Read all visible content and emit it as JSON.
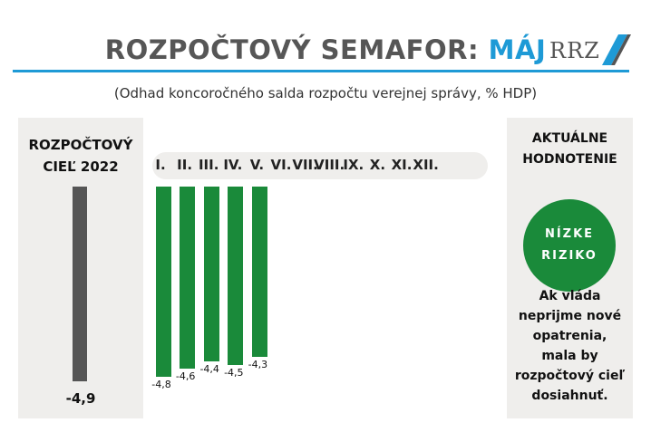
{
  "header": {
    "title_main": "ROZPOČTOVÝ SEMAFOR: ",
    "title_accent": "MÁJ",
    "logo_text": "RRZ",
    "subtitle": "(Odhad koncoročného salda rozpočtu verejnej správy, % HDP)"
  },
  "colors": {
    "accent": "#1e9ad6",
    "bar_green": "#1a8a3a",
    "target_bar": "#555555",
    "panel_bg": "#efeeec"
  },
  "target_panel": {
    "title_line1": "ROZPOČTOVÝ",
    "title_line2": "CIEĽ 2022",
    "value": -4.9,
    "value_label": "-4,9"
  },
  "assessment_panel": {
    "title_line1": "AKTUÁLNE",
    "title_line2": "HODNOTENIE",
    "risk_line1": "NÍZKE",
    "risk_line2": "RIZIKO",
    "note_lines": [
      "Ak vláda",
      "neprijme nové",
      "opatrenia,",
      "mala by",
      "rozpočtový cieľ",
      "dosiahnuť."
    ]
  },
  "chart_data": {
    "type": "bar",
    "categories": [
      "I.",
      "II.",
      "III.",
      "IV.",
      "V.",
      "VI.",
      "VII.",
      "VIII.",
      "IX.",
      "X.",
      "XI.",
      "XII."
    ],
    "values": [
      -4.8,
      -4.6,
      -4.4,
      -4.5,
      -4.3,
      null,
      null,
      null,
      null,
      null,
      null,
      null
    ],
    "value_labels": [
      "-4,8",
      "-4,6",
      "-4,4",
      "-4,5",
      "-4,3",
      "",
      "",
      "",
      "",
      "",
      "",
      ""
    ],
    "title": "",
    "xlabel": "",
    "ylabel": "",
    "ylim": [
      -4.9,
      0
    ]
  }
}
